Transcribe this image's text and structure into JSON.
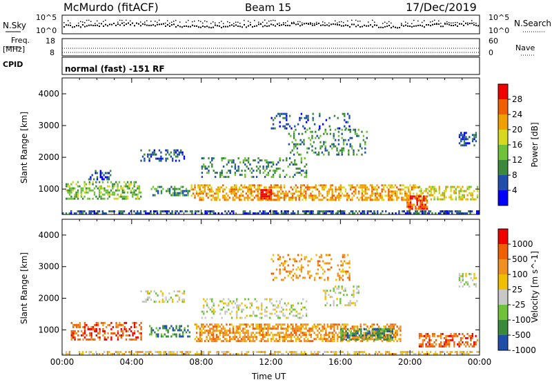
{
  "header": {
    "title": "McMurdo (fitACF)",
    "beam": "Beam 15",
    "date": "17/Dec/2019"
  },
  "noise_panel": {
    "left_label": "N.Sky",
    "right_label": "N.Search",
    "tick_top": "10^5",
    "tick_bottom": "10^0"
  },
  "freq_panel": {
    "label_line1": "Freq.",
    "label_line2": "[MHz]",
    "left_ticks": [
      "18",
      "8"
    ],
    "right_ticks": [
      "60",
      "0"
    ],
    "right_label": "Nave"
  },
  "cpid_panel": {
    "label": "CPID",
    "text": "normal (fast) -151 RF"
  },
  "chart_data": [
    {
      "type": "heatmap",
      "name": "power",
      "ylabel": "Slant Range [km]",
      "ylim": [
        200,
        4500
      ],
      "yticks": [
        "1000",
        "2000",
        "3000",
        "4000"
      ],
      "xlim": [
        0,
        24
      ],
      "colorbar_label": "Power [dB]",
      "colorbar_ticks": [
        "4",
        "8",
        "12",
        "16",
        "20",
        "24",
        "28"
      ],
      "colors": [
        "#0000ff",
        "#1f4fa8",
        "#3b8a3b",
        "#6fc13a",
        "#d8d820",
        "#f0a000",
        "#f06000",
        "#f00000"
      ],
      "echo_regions": [
        {
          "t0": 0.0,
          "t1": 23.9,
          "r0": 200,
          "r1": 330,
          "level": 1,
          "density": 0.55
        },
        {
          "t0": 0.2,
          "t1": 4.5,
          "r0": 700,
          "r1": 1250,
          "level": 3,
          "density": 0.45
        },
        {
          "t0": 5.0,
          "t1": 7.3,
          "r0": 800,
          "r1": 1100,
          "level": 2,
          "density": 0.4
        },
        {
          "t0": 7.4,
          "t1": 20.5,
          "r0": 650,
          "r1": 1150,
          "level": 5,
          "density": 0.55
        },
        {
          "t0": 20.5,
          "t1": 23.9,
          "r0": 700,
          "r1": 1100,
          "level": 4,
          "density": 0.5
        },
        {
          "t0": 4.5,
          "t1": 7.0,
          "r0": 1900,
          "r1": 2250,
          "level": 1,
          "density": 0.3
        },
        {
          "t0": 8.0,
          "t1": 14.0,
          "r0": 1400,
          "r1": 2000,
          "level": 2,
          "density": 0.25
        },
        {
          "t0": 13.0,
          "t1": 17.5,
          "r0": 2100,
          "r1": 2900,
          "level": 2,
          "density": 0.25
        },
        {
          "t0": 12.0,
          "t1": 16.5,
          "r0": 2900,
          "r1": 3400,
          "level": 1,
          "density": 0.2
        },
        {
          "t0": 1.5,
          "t1": 2.8,
          "r0": 1300,
          "r1": 1600,
          "level": 1,
          "density": 0.3
        },
        {
          "t0": 11.4,
          "t1": 12.0,
          "r0": 700,
          "r1": 1000,
          "level": 7,
          "density": 0.8
        },
        {
          "t0": 19.8,
          "t1": 21.0,
          "r0": 400,
          "r1": 800,
          "level": 6,
          "density": 0.7
        },
        {
          "t0": 22.8,
          "t1": 23.8,
          "r0": 2400,
          "r1": 2800,
          "level": 1,
          "density": 0.4
        }
      ]
    },
    {
      "type": "heatmap",
      "name": "velocity",
      "ylabel": "Slant Range [km]",
      "ylim": [
        200,
        4500
      ],
      "yticks": [
        "1000",
        "2000",
        "3000",
        "4000"
      ],
      "xlim": [
        0,
        24
      ],
      "xticks": [
        "00:00",
        "04:00",
        "08:00",
        "12:00",
        "16:00",
        "20:00",
        "00:00"
      ],
      "xlabel": "Time UT",
      "colorbar_label": "Velocity [m s^-1]",
      "colorbar_ticks": [
        "1000",
        "500",
        "100",
        "25",
        "-25",
        "-100",
        "-500",
        "-1000"
      ],
      "colors": [
        "#1f4fa8",
        "#3b8a3b",
        "#6fc13a",
        "#c8c8c8",
        "#f0c000",
        "#f09020",
        "#f06000",
        "#f00000"
      ],
      "echo_regions": [
        {
          "t0": 0.0,
          "t1": 23.9,
          "r0": 200,
          "r1": 330,
          "level": 4,
          "density": 0.5
        },
        {
          "t0": 0.5,
          "t1": 4.5,
          "r0": 700,
          "r1": 1250,
          "level": 6,
          "density": 0.45
        },
        {
          "t0": 5.0,
          "t1": 7.3,
          "r0": 800,
          "r1": 1150,
          "level": 1,
          "density": 0.45
        },
        {
          "t0": 7.6,
          "t1": 19.5,
          "r0": 650,
          "r1": 1200,
          "level": 5,
          "density": 0.6
        },
        {
          "t0": 16.0,
          "t1": 19.0,
          "r0": 700,
          "r1": 1050,
          "level": 1,
          "density": 0.55
        },
        {
          "t0": 20.5,
          "t1": 23.9,
          "r0": 500,
          "r1": 900,
          "level": 6,
          "density": 0.5
        },
        {
          "t0": 4.5,
          "t1": 7.0,
          "r0": 1900,
          "r1": 2250,
          "level": 3,
          "density": 0.3
        },
        {
          "t0": 8.0,
          "t1": 14.0,
          "r0": 1400,
          "r1": 2000,
          "level": 3,
          "density": 0.25
        },
        {
          "t0": 12.0,
          "t1": 16.5,
          "r0": 2600,
          "r1": 3400,
          "level": 5,
          "density": 0.25
        },
        {
          "t0": 15.0,
          "t1": 17.0,
          "r0": 1800,
          "r1": 2400,
          "level": 3,
          "density": 0.3
        },
        {
          "t0": 22.8,
          "t1": 23.8,
          "r0": 2400,
          "r1": 2800,
          "level": 3,
          "density": 0.4
        }
      ]
    }
  ]
}
